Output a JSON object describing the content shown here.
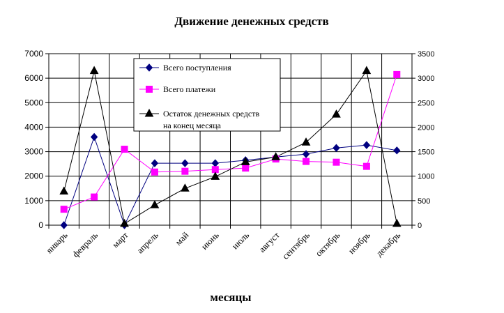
{
  "chart_data": {
    "type": "line",
    "title": "Движение денежных средств",
    "xlabel": "месяцы",
    "ylabel": "",
    "categories": [
      "январь",
      "февраль",
      "март",
      "апрель",
      "май",
      "июнь",
      "июль",
      "август",
      "сентябрь",
      "октябрь",
      "ноябрь",
      "декабрь"
    ],
    "ylim": [
      0,
      7000
    ],
    "y_ticks": [
      "0",
      "1000",
      "2000",
      "3000",
      "4000",
      "5000",
      "6000",
      "7000"
    ],
    "y2lim": [
      0,
      3500
    ],
    "y2_ticks": [
      "0",
      "500",
      "1000",
      "1500",
      "2000",
      "2500",
      "3000",
      "3500"
    ],
    "grid": true,
    "legend_position": "top-center",
    "series": [
      {
        "name": "Всего поступления",
        "axis": "left",
        "marker": "diamond",
        "color": "#000080",
        "line_color": "#000080",
        "values": [
          0,
          3600,
          0,
          2530,
          2530,
          2530,
          2650,
          2780,
          2900,
          3150,
          3270,
          3050
        ]
      },
      {
        "name": "Всего платежи",
        "axis": "left",
        "marker": "square",
        "color": "#ff00ff",
        "line_color": "#ff00ff",
        "values": [
          650,
          1150,
          3100,
          2170,
          2200,
          2270,
          2330,
          2700,
          2600,
          2570,
          2400,
          6150
        ]
      },
      {
        "name": "Остаток денежных средств на конец месяца",
        "name_lines": [
          "Остаток денежных средств",
          "на конец месяца"
        ],
        "axis": "right",
        "marker": "triangle",
        "color": "#000000",
        "line_color": "#000000",
        "values": [
          690,
          3150,
          30,
          410,
          750,
          990,
          1290,
          1390,
          1690,
          2260,
          3150,
          30
        ]
      }
    ]
  }
}
